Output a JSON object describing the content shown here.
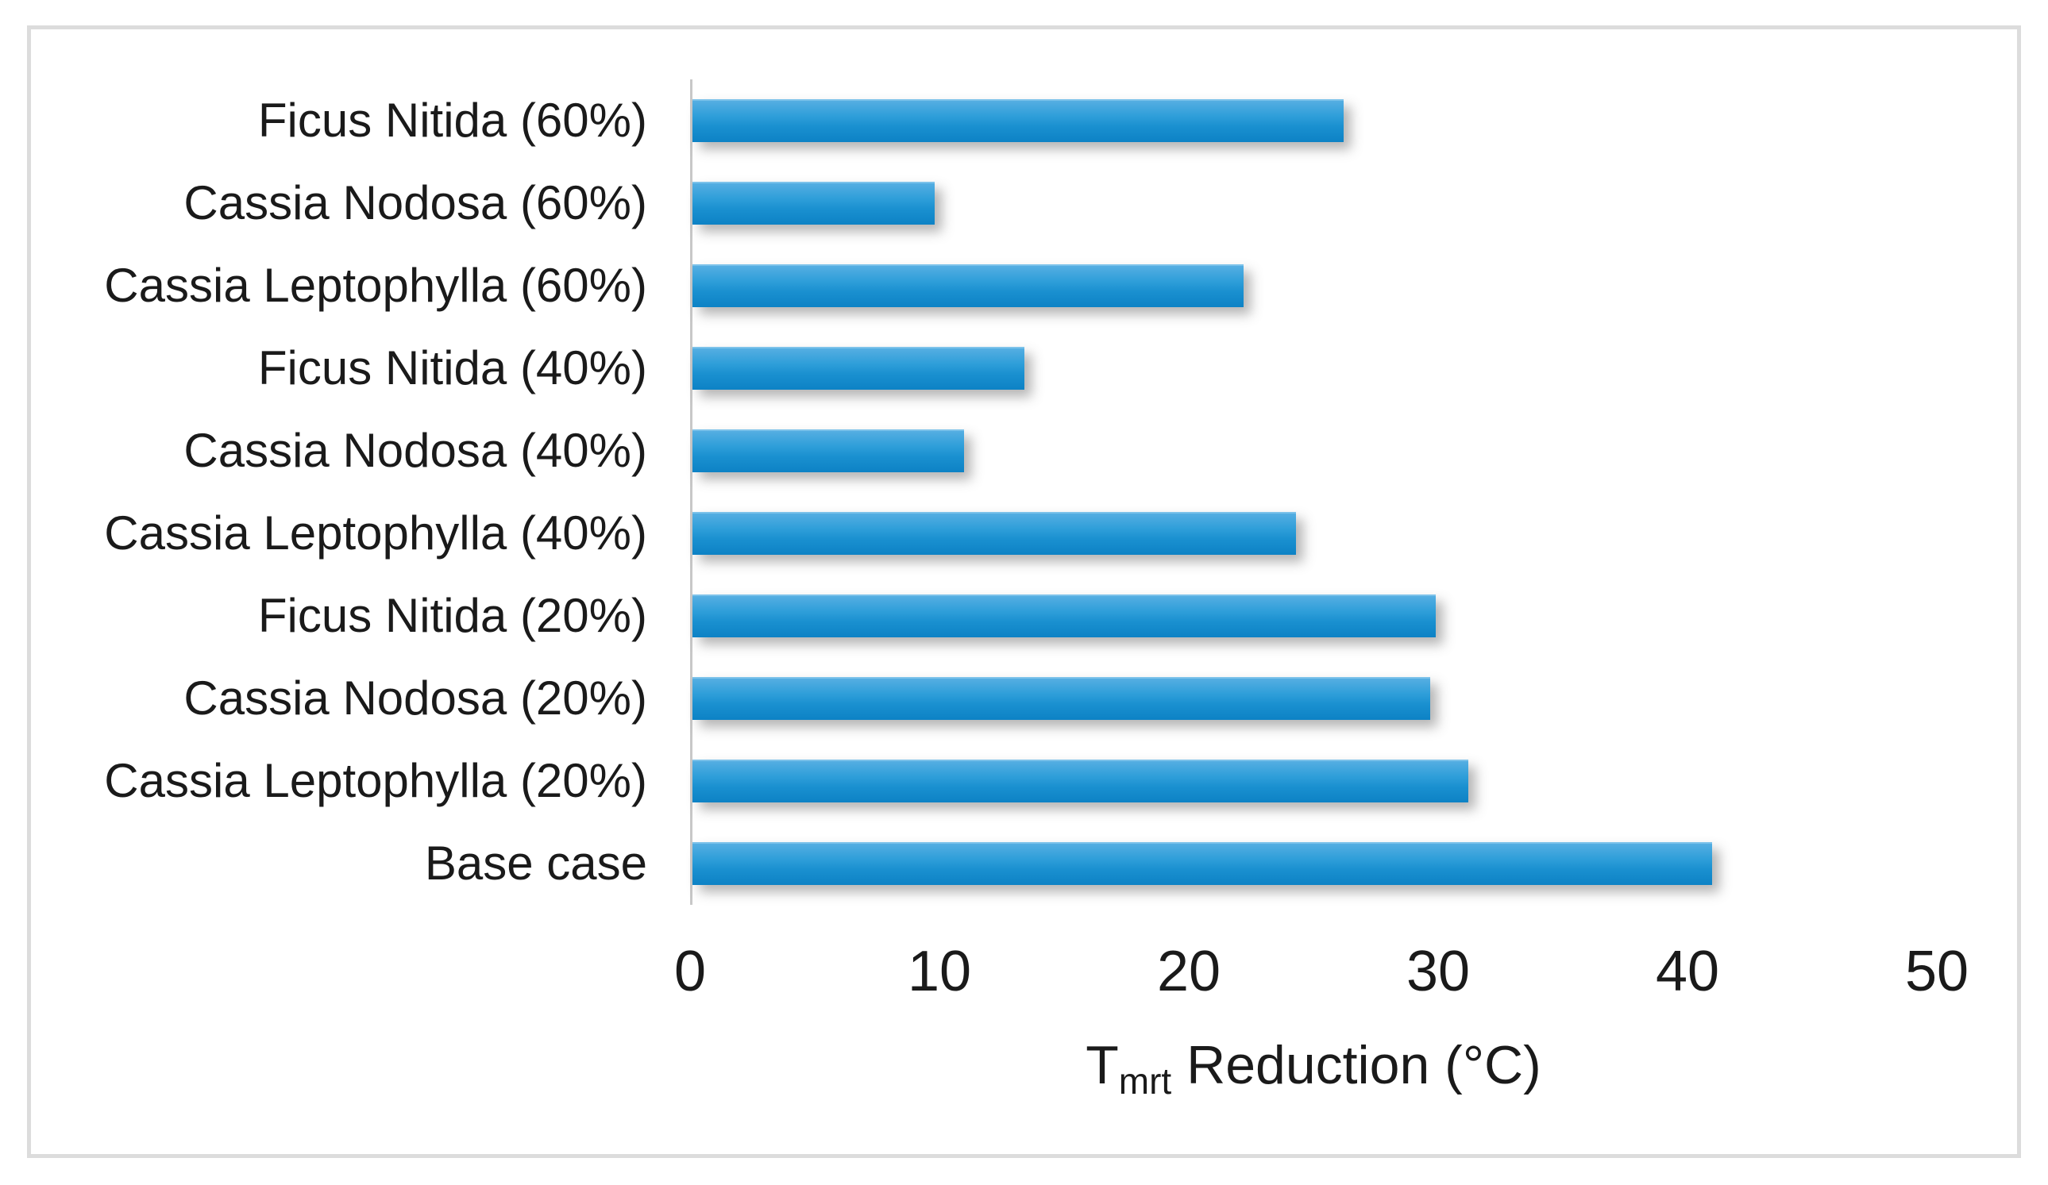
{
  "chart_data": {
    "type": "bar",
    "orientation": "horizontal",
    "title": "",
    "categories": [
      "Ficus Nitida (60%)",
      "Cassia Nodosa (60%)",
      "Cassia Leptophylla (60%)",
      "Ficus Nitida (40%)",
      "Cassia Nodosa (40%)",
      "Cassia Leptophylla (40%)",
      "Ficus Nitida (20%)",
      "Cassia Nodosa (20%)",
      "Cassia Leptophylla (20%)",
      "Base case"
    ],
    "values": [
      26.1,
      9.7,
      22.1,
      13.3,
      10.9,
      24.2,
      29.8,
      29.6,
      31.1,
      40.9
    ],
    "xlabel": "Tmrt Reduction (°C)",
    "xlabel_parts": {
      "main": "T",
      "sub": "mrt",
      "rest": " Reduction (°C)"
    },
    "ylabel": "",
    "xlim": [
      0,
      50
    ],
    "xticks": [
      0,
      10,
      20,
      30,
      40,
      50
    ],
    "grid": false,
    "legend": false,
    "bar_color_top": "#55aee2",
    "bar_color_bottom": "#0d82c5",
    "axis_line_color": "#c8c8c8",
    "frame_color": "#dcdcdc",
    "text_color": "#1a1a1a"
  }
}
